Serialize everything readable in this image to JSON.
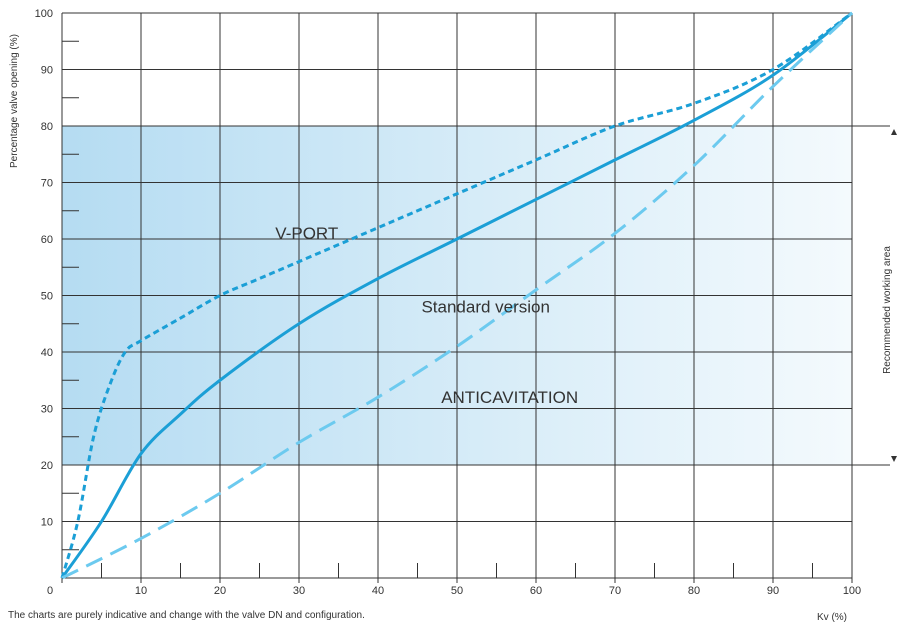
{
  "colors": {
    "background": "#ffffff",
    "grid": "#333333",
    "band_dark": "#b5dcf2",
    "band_light": "#f4fafd",
    "curve_dark": "#1b9fd6",
    "curve_light": "#6ccaef",
    "text": "#333333"
  },
  "footnote": "The charts are purely indicative and change with the valve DN and configuration.",
  "chart_data": {
    "type": "line",
    "xlabel": "Kv (%)",
    "ylabel": "Percentage valve opening (%)",
    "xlim": [
      0,
      100
    ],
    "ylim": [
      0,
      100
    ],
    "x_ticks": [
      "0",
      "10",
      "20",
      "30",
      "40",
      "50",
      "60",
      "70",
      "80",
      "90",
      "100"
    ],
    "y_ticks": [
      "10",
      "20",
      "30",
      "40",
      "50",
      "60",
      "70",
      "80",
      "90",
      "100"
    ],
    "grid": true,
    "band": {
      "label": "Recommended working area",
      "y_range": [
        20,
        80
      ]
    },
    "series": [
      {
        "name": "V-PORT",
        "style": "short-dash",
        "color": "#1b9fd6",
        "x": [
          0,
          2,
          4,
          6,
          8,
          10,
          15,
          20,
          25,
          30,
          40,
          50,
          60,
          70,
          80,
          90,
          100
        ],
        "y": [
          0,
          10,
          25,
          34,
          40,
          42,
          46,
          50,
          53,
          56,
          62,
          68,
          74,
          80,
          84,
          90,
          100
        ],
        "label_pos": [
          27,
          60
        ]
      },
      {
        "name": "Standard version",
        "style": "solid",
        "color": "#1b9fd6",
        "x": [
          0,
          5,
          10,
          15,
          20,
          30,
          40,
          50,
          60,
          70,
          80,
          90,
          100
        ],
        "y": [
          0,
          10,
          22,
          29,
          35,
          45,
          53,
          60,
          67,
          74,
          81,
          89,
          100
        ],
        "label_pos": [
          45.5,
          47
        ]
      },
      {
        "name": "ANTICAVITATION",
        "style": "long-dash",
        "color": "#6ccaef",
        "x": [
          0,
          10,
          20,
          30,
          40,
          50,
          60,
          70,
          80,
          90,
          100
        ],
        "y": [
          0,
          7,
          15,
          24,
          32,
          41,
          51,
          61,
          73,
          87,
          100
        ],
        "label_pos": [
          48,
          31
        ]
      }
    ]
  }
}
